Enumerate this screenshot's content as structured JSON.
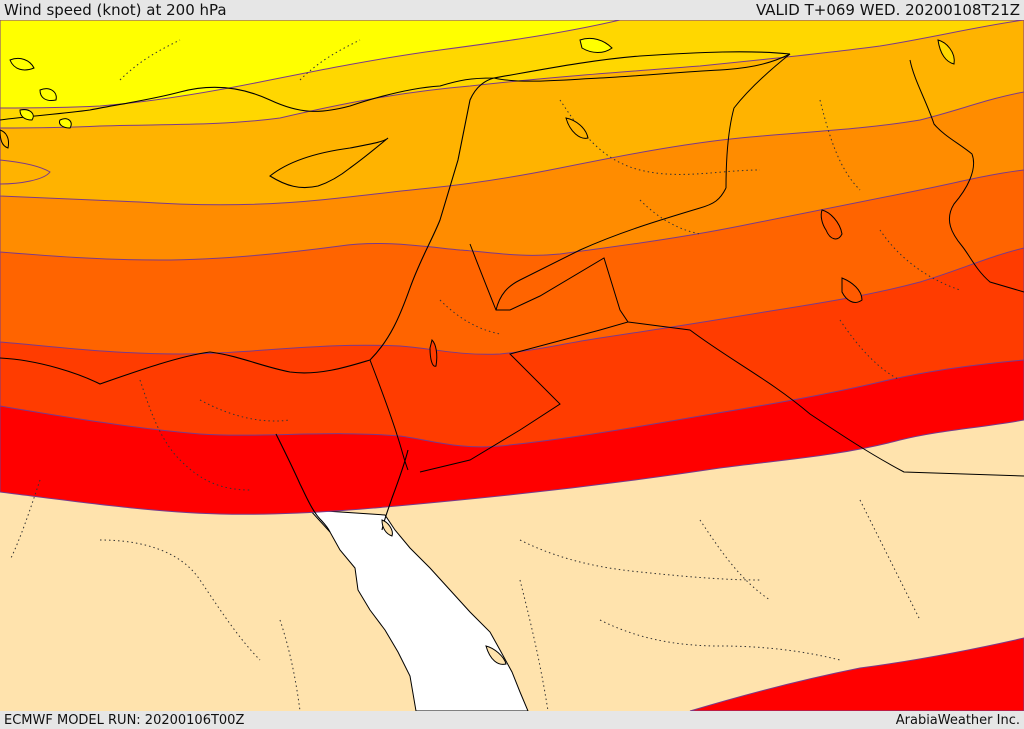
{
  "header": {
    "title": "Wind speed (knot) at 200 hPa",
    "valid": "VALID T+069 WED. 20200108T21Z"
  },
  "footer": {
    "model_run": "ECMWF MODEL RUN: 20200106T00Z",
    "credit": "ArabiaWeather Inc."
  },
  "map": {
    "field": "wind-speed-200hpa",
    "region": "Eastern Mediterranean / Middle East",
    "colors": {
      "band_1": "#ffff00",
      "band_2": "#ffd700",
      "band_3": "#ffb300",
      "band_4": "#ff8c00",
      "band_5": "#ff6400",
      "band_6": "#ff3c00",
      "band_7": "#ff0000",
      "land_below_threshold": "#ffe3ad",
      "sea_below_threshold": "#ffffff",
      "contour": "#7a3a8a"
    }
  }
}
